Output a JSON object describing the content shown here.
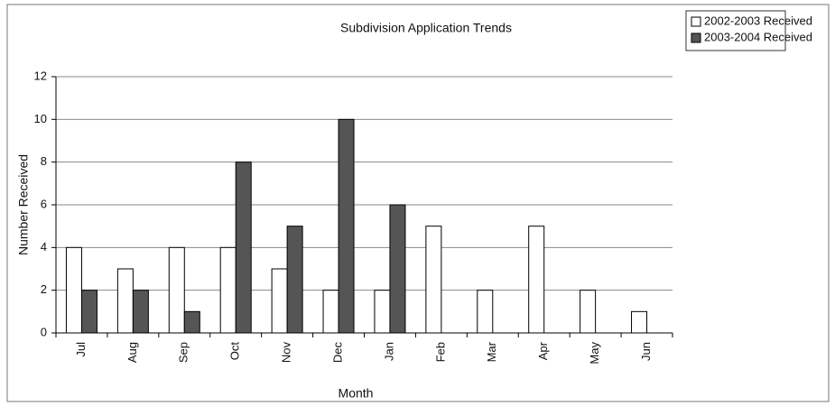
{
  "chart_data": {
    "type": "bar",
    "title": "Subdivision Application Trends",
    "x_label": "Month",
    "y_label": "Number Received",
    "categories": [
      "Jul",
      "Aug",
      "Sep",
      "Oct",
      "Nov",
      "Dec",
      "Jan",
      "Feb",
      "Mar",
      "Apr",
      "May",
      "Jun"
    ],
    "series": [
      {
        "name": "2002-2003 Received",
        "color": "#ffffff",
        "values": [
          4,
          3,
          4,
          4,
          3,
          2,
          2,
          5,
          2,
          5,
          2,
          1
        ]
      },
      {
        "name": "2003-2004 Received",
        "color": "#555555",
        "values": [
          2,
          2,
          1,
          8,
          5,
          10,
          6,
          null,
          null,
          null,
          null,
          null
        ]
      }
    ],
    "ylim": [
      0,
      12
    ],
    "yticks": [
      0,
      2,
      4,
      6,
      8,
      10,
      12
    ],
    "grid": true,
    "legend": "top-right"
  }
}
